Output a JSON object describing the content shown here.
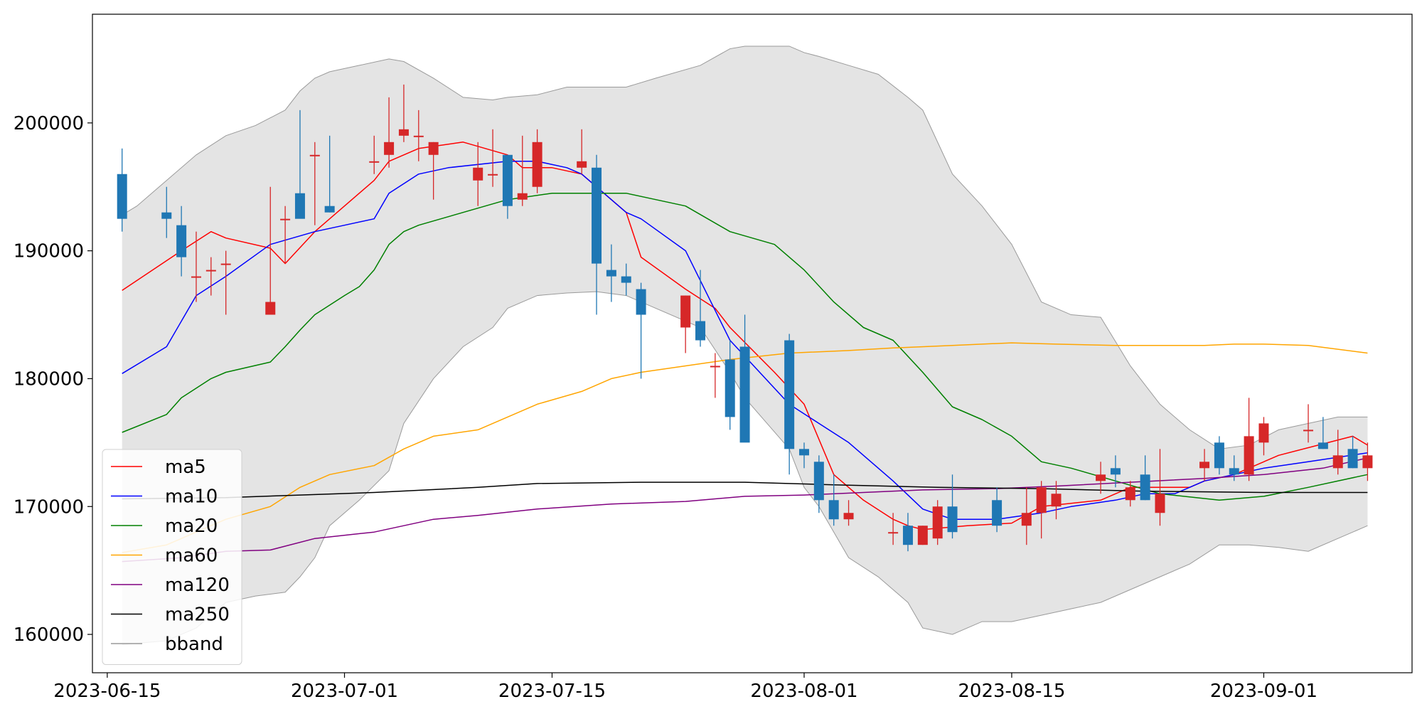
{
  "chart_data": {
    "type": "candlestick",
    "title": "",
    "xlabel": "",
    "ylabel": "",
    "ylim": [
      157000,
      208500
    ],
    "xlim": [
      "2023-06-14",
      "2023-09-11"
    ],
    "yticks": [
      160000,
      170000,
      180000,
      190000,
      200000
    ],
    "yticks_text": [
      "160000",
      "170000",
      "180000",
      "190000",
      "200000"
    ],
    "xticks": [
      "2023-06-15",
      "2023-07-01",
      "2023-07-15",
      "2023-08-01",
      "2023-08-15",
      "2023-09-01"
    ],
    "legend_position": "lower-left",
    "grid": false,
    "colors": {
      "up": "#d62728",
      "down": "#1f77b4",
      "band_fill": "#e4e4e4",
      "band_edge": "#9a9a9a"
    },
    "candles": {
      "dates": [
        "2023-06-16",
        "2023-06-19",
        "2023-06-20",
        "2023-06-21",
        "2023-06-22",
        "2023-06-23",
        "2023-06-26",
        "2023-06-27",
        "2023-06-28",
        "2023-06-29",
        "2023-06-30",
        "2023-07-03",
        "2023-07-04",
        "2023-07-05",
        "2023-07-06",
        "2023-07-07",
        "2023-07-10",
        "2023-07-11",
        "2023-07-12",
        "2023-07-13",
        "2023-07-14",
        "2023-07-17",
        "2023-07-18",
        "2023-07-19",
        "2023-07-20",
        "2023-07-21",
        "2023-07-24",
        "2023-07-25",
        "2023-07-26",
        "2023-07-27",
        "2023-07-28",
        "2023-07-31",
        "2023-08-01",
        "2023-08-02",
        "2023-08-03",
        "2023-08-04",
        "2023-08-07",
        "2023-08-08",
        "2023-08-09",
        "2023-08-10",
        "2023-08-11",
        "2023-08-14",
        "2023-08-16",
        "2023-08-17",
        "2023-08-18",
        "2023-08-21",
        "2023-08-22",
        "2023-08-23",
        "2023-08-24",
        "2023-08-25",
        "2023-08-28",
        "2023-08-29",
        "2023-08-30",
        "2023-08-31",
        "2023-09-01",
        "2023-09-04",
        "2023-09-05",
        "2023-09-06",
        "2023-09-07",
        "2023-09-08"
      ],
      "open": [
        196000,
        193000,
        192000,
        188000,
        188500,
        189000,
        185000,
        192500,
        194500,
        197500,
        193500,
        197000,
        197500,
        199000,
        199000,
        197500,
        195500,
        196000,
        197500,
        194000,
        195000,
        196500,
        196500,
        188500,
        188000,
        187000,
        184000,
        184500,
        181000,
        181500,
        182500,
        183000,
        174500,
        173500,
        170500,
        169000,
        168000,
        168500,
        167000,
        167500,
        170000,
        170500,
        168500,
        169500,
        170000,
        172000,
        173000,
        170500,
        172500,
        169500,
        173000,
        175000,
        173000,
        172500,
        175000,
        176000,
        175000,
        173000,
        174500,
        173000
      ],
      "high": [
        198000,
        195000,
        193500,
        191500,
        189500,
        190000,
        195000,
        193500,
        201000,
        198500,
        199000,
        199000,
        202000,
        203000,
        201000,
        198500,
        198500,
        199500,
        197500,
        199000,
        199500,
        199500,
        197500,
        190500,
        189000,
        187500,
        186500,
        188500,
        182000,
        183000,
        185000,
        183500,
        175000,
        174000,
        172500,
        170500,
        169500,
        169500,
        168500,
        170500,
        172500,
        171500,
        171500,
        172000,
        172000,
        173500,
        174000,
        172000,
        174000,
        174500,
        174500,
        175500,
        174000,
        178500,
        177000,
        178000,
        177000,
        176000,
        175500,
        175000
      ],
      "low": [
        191500,
        191000,
        188000,
        186000,
        186500,
        185000,
        185000,
        189000,
        194000,
        192000,
        193000,
        196000,
        196500,
        198500,
        197000,
        194000,
        193500,
        195000,
        192500,
        193500,
        194500,
        196000,
        185000,
        186000,
        186500,
        180000,
        182000,
        182500,
        178500,
        176000,
        176500,
        172500,
        173000,
        169500,
        168500,
        168500,
        167000,
        166500,
        167000,
        167000,
        167500,
        168000,
        167000,
        167500,
        169000,
        171000,
        171500,
        170000,
        170500,
        168500,
        172000,
        172500,
        172000,
        172000,
        174000,
        175000,
        174500,
        172500,
        173000,
        172000
      ],
      "close": [
        192500,
        192500,
        189500,
        188000,
        188500,
        189000,
        186000,
        192500,
        192500,
        197500,
        193000,
        197000,
        198500,
        199500,
        199000,
        198500,
        196500,
        196000,
        193500,
        194500,
        198500,
        197000,
        189000,
        188000,
        187500,
        185000,
        186500,
        183000,
        181000,
        177000,
        175000,
        174500,
        174000,
        170500,
        169000,
        169500,
        168000,
        167000,
        168500,
        170000,
        168000,
        168500,
        169500,
        171500,
        171000,
        172500,
        172500,
        171500,
        170500,
        171000,
        173500,
        173000,
        172500,
        175500,
        176500,
        176000,
        174500,
        174000,
        173000,
        174000
      ]
    },
    "series": [
      {
        "name": "ma5",
        "color": "#ff0000",
        "x": [
          "2023-06-16",
          "2023-06-20",
          "2023-06-22",
          "2023-06-23",
          "2023-06-26",
          "2023-06-27",
          "2023-06-29",
          "2023-07-01",
          "2023-07-03",
          "2023-07-04",
          "2023-07-06",
          "2023-07-09",
          "2023-07-12",
          "2023-07-13",
          "2023-07-15",
          "2023-07-17",
          "2023-07-20",
          "2023-07-21",
          "2023-07-24",
          "2023-07-26",
          "2023-07-27",
          "2023-07-30",
          "2023-08-01",
          "2023-08-03",
          "2023-08-05",
          "2023-08-07",
          "2023-08-08",
          "2023-08-09",
          "2023-08-12",
          "2023-08-15",
          "2023-08-17",
          "2023-08-21",
          "2023-08-23",
          "2023-08-27",
          "2023-08-28",
          "2023-08-30",
          "2023-09-02",
          "2023-09-07",
          "2023-09-08"
        ],
        "y": [
          186900,
          190000,
          191500,
          191000,
          190200,
          189000,
          191500,
          193500,
          195500,
          197000,
          198000,
          198500,
          197500,
          196500,
          196500,
          196000,
          193000,
          189500,
          187000,
          185500,
          184000,
          180500,
          178000,
          172500,
          170500,
          169000,
          168500,
          168200,
          168500,
          168700,
          170000,
          170500,
          171500,
          171500,
          172000,
          172500,
          174000,
          175500,
          174800
        ]
      },
      {
        "name": "ma10",
        "color": "#0000ff",
        "x": [
          "2023-06-16",
          "2023-06-19",
          "2023-06-21",
          "2023-06-23",
          "2023-06-26",
          "2023-06-29",
          "2023-07-01",
          "2023-07-03",
          "2023-07-04",
          "2023-07-06",
          "2023-07-08",
          "2023-07-12",
          "2023-07-14",
          "2023-07-16",
          "2023-07-17",
          "2023-07-20",
          "2023-07-21",
          "2023-07-24",
          "2023-07-27",
          "2023-07-31",
          "2023-08-02",
          "2023-08-04",
          "2023-08-07",
          "2023-08-09",
          "2023-08-11",
          "2023-08-14",
          "2023-08-17",
          "2023-08-19",
          "2023-08-22",
          "2023-08-24",
          "2023-08-26",
          "2023-08-28",
          "2023-08-30",
          "2023-09-01",
          "2023-09-04",
          "2023-09-08"
        ],
        "y": [
          180400,
          182500,
          186500,
          188000,
          190500,
          191500,
          192000,
          192500,
          194500,
          196000,
          196500,
          197000,
          197000,
          196500,
          196000,
          193000,
          192500,
          190000,
          183000,
          178000,
          176500,
          175000,
          172000,
          169800,
          169000,
          169000,
          169500,
          170000,
          170500,
          171000,
          171000,
          172000,
          172500,
          173000,
          173500,
          174200
        ]
      },
      {
        "name": "ma20",
        "color": "#008000",
        "x": [
          "2023-06-16",
          "2023-06-19",
          "2023-06-20",
          "2023-06-22",
          "2023-06-23",
          "2023-06-26",
          "2023-06-27",
          "2023-06-28",
          "2023-06-29",
          "2023-07-01",
          "2023-07-02",
          "2023-07-03",
          "2023-07-04",
          "2023-07-05",
          "2023-07-06",
          "2023-07-09",
          "2023-07-12",
          "2023-07-15",
          "2023-07-17",
          "2023-07-20",
          "2023-07-22",
          "2023-07-24",
          "2023-07-27",
          "2023-07-30",
          "2023-08-01",
          "2023-08-03",
          "2023-08-05",
          "2023-08-07",
          "2023-08-09",
          "2023-08-11",
          "2023-08-13",
          "2023-08-15",
          "2023-08-17",
          "2023-08-19",
          "2023-08-22",
          "2023-08-25",
          "2023-08-29",
          "2023-09-01",
          "2023-09-04",
          "2023-09-08"
        ],
        "y": [
          175800,
          177200,
          178500,
          180000,
          180500,
          181300,
          182500,
          183800,
          185000,
          186500,
          187200,
          188500,
          190500,
          191500,
          192000,
          193000,
          194000,
          194500,
          194500,
          194500,
          194000,
          193500,
          191500,
          190500,
          188500,
          186000,
          184000,
          183000,
          180500,
          177800,
          176800,
          175500,
          173500,
          173000,
          172000,
          171000,
          170500,
          170800,
          171500,
          172500
        ]
      },
      {
        "name": "ma60",
        "color": "#ffa500",
        "x": [
          "2023-06-16",
          "2023-06-19",
          "2023-06-21",
          "2023-06-23",
          "2023-06-26",
          "2023-06-28",
          "2023-06-30",
          "2023-07-03",
          "2023-07-05",
          "2023-07-07",
          "2023-07-10",
          "2023-07-12",
          "2023-07-14",
          "2023-07-17",
          "2023-07-19",
          "2023-07-21",
          "2023-07-24",
          "2023-07-27",
          "2023-07-31",
          "2023-08-04",
          "2023-08-07",
          "2023-08-11",
          "2023-08-15",
          "2023-08-18",
          "2023-08-22",
          "2023-08-25",
          "2023-08-28",
          "2023-08-30",
          "2023-09-01",
          "2023-09-04",
          "2023-09-08"
        ],
        "y": [
          166400,
          167000,
          168000,
          169000,
          170000,
          171500,
          172500,
          173200,
          174500,
          175500,
          176000,
          177000,
          178000,
          179000,
          180000,
          180500,
          181000,
          181500,
          182000,
          182200,
          182400,
          182600,
          182800,
          182700,
          182600,
          182600,
          182600,
          182700,
          182700,
          182600,
          182000
        ]
      },
      {
        "name": "ma120",
        "color": "#800080",
        "x": [
          "2023-06-16",
          "2023-06-20",
          "2023-06-23",
          "2023-06-26",
          "2023-06-29",
          "2023-07-03",
          "2023-07-07",
          "2023-07-10",
          "2023-07-14",
          "2023-07-19",
          "2023-07-24",
          "2023-07-28",
          "2023-08-01",
          "2023-08-05",
          "2023-08-09",
          "2023-08-14",
          "2023-08-18",
          "2023-08-23",
          "2023-08-28",
          "2023-09-01",
          "2023-09-05",
          "2023-09-08"
        ],
        "y": [
          165700,
          166000,
          166500,
          166600,
          167500,
          168000,
          169000,
          169300,
          169800,
          170200,
          170400,
          170800,
          170900,
          171100,
          171300,
          171400,
          171600,
          171900,
          172200,
          172500,
          173000,
          173800
        ]
      },
      {
        "name": "ma250",
        "color": "#000000",
        "x": [
          "2023-06-16",
          "2023-06-23",
          "2023-06-28",
          "2023-07-03",
          "2023-07-10",
          "2023-07-14",
          "2023-07-21",
          "2023-07-28",
          "2023-08-03",
          "2023-08-10",
          "2023-08-17",
          "2023-08-24",
          "2023-09-01",
          "2023-09-08"
        ],
        "y": [
          170600,
          170700,
          170900,
          171100,
          171500,
          171800,
          171900,
          171900,
          171700,
          171500,
          171400,
          171200,
          171100,
          171100
        ]
      }
    ],
    "bband": {
      "name": "bband",
      "x": [
        "2023-06-16",
        "2023-06-17",
        "2023-06-19",
        "2023-06-21",
        "2023-06-23",
        "2023-06-25",
        "2023-06-27",
        "2023-06-28",
        "2023-06-29",
        "2023-06-30",
        "2023-07-02",
        "2023-07-04",
        "2023-07-05",
        "2023-07-07",
        "2023-07-09",
        "2023-07-11",
        "2023-07-12",
        "2023-07-14",
        "2023-07-16",
        "2023-07-18",
        "2023-07-20",
        "2023-07-22",
        "2023-07-25",
        "2023-07-27",
        "2023-07-28",
        "2023-07-31",
        "2023-08-01",
        "2023-08-02",
        "2023-08-04",
        "2023-08-06",
        "2023-08-08",
        "2023-08-09",
        "2023-08-11",
        "2023-08-13",
        "2023-08-15",
        "2023-08-17",
        "2023-08-19",
        "2023-08-21",
        "2023-08-23",
        "2023-08-25",
        "2023-08-27",
        "2023-08-29",
        "2023-08-31",
        "2023-09-02",
        "2023-09-04",
        "2023-09-06",
        "2023-09-08"
      ],
      "upper": [
        192800,
        193500,
        195500,
        197500,
        199000,
        199800,
        201000,
        202500,
        203500,
        204000,
        204500,
        205000,
        204800,
        203500,
        202000,
        201800,
        202000,
        202200,
        202800,
        202800,
        202800,
        203500,
        204500,
        205800,
        206000,
        206000,
        205500,
        205200,
        204500,
        203800,
        202000,
        201000,
        196000,
        193500,
        190500,
        186000,
        185000,
        184800,
        181000,
        178000,
        176000,
        174500,
        174800,
        176000,
        176500,
        177000,
        177000
      ],
      "lower": [
        159200,
        159300,
        159500,
        160500,
        162500,
        163000,
        163300,
        164500,
        166000,
        168500,
        170500,
        172800,
        176500,
        180000,
        182500,
        184000,
        185500,
        186500,
        186700,
        186800,
        186500,
        185500,
        184000,
        180500,
        178500,
        174500,
        171500,
        170000,
        166000,
        164500,
        162500,
        160500,
        160000,
        161000,
        161000,
        161500,
        162000,
        162500,
        163500,
        164500,
        165500,
        167000,
        167000,
        166800,
        166500,
        167500,
        168500
      ]
    }
  }
}
